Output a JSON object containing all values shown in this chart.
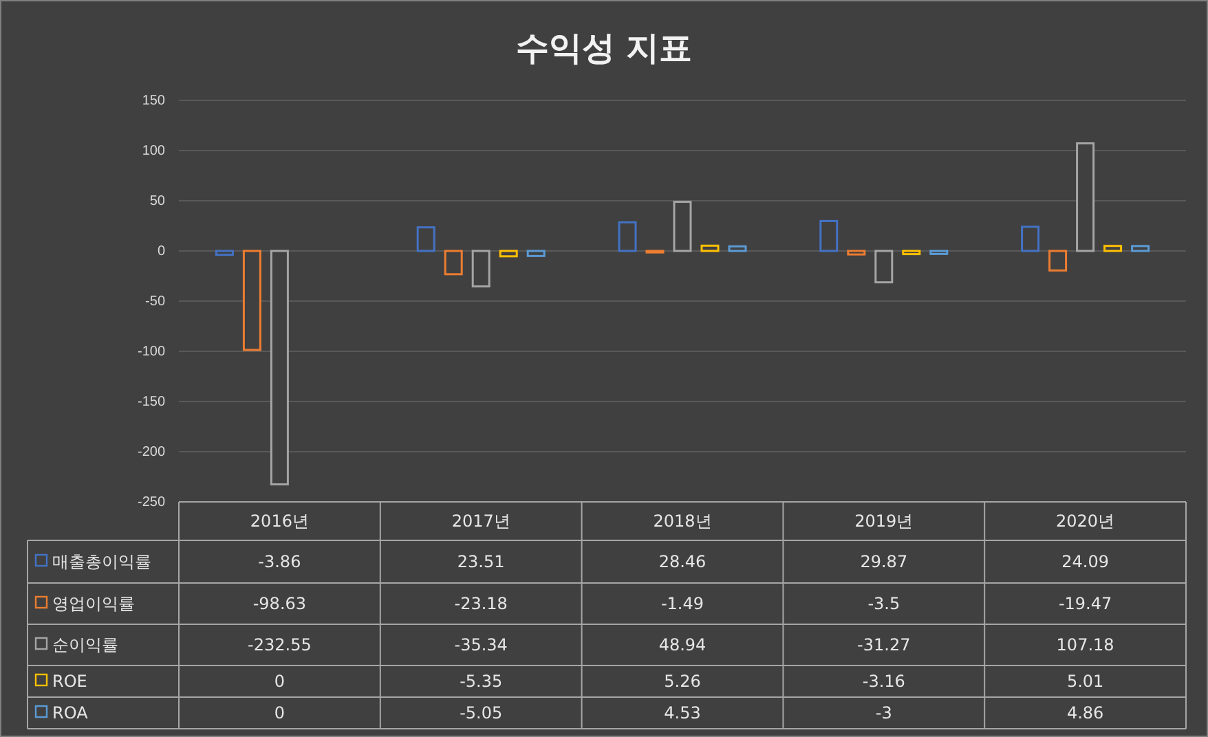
{
  "chart_data": {
    "type": "bar",
    "title": "수익성 지표",
    "categories": [
      "2016년",
      "2017년",
      "2018년",
      "2019년",
      "2020년"
    ],
    "series": [
      {
        "name": "매출총이익률",
        "color": "#4472c4",
        "values": [
          -3.86,
          23.51,
          28.46,
          29.87,
          24.09
        ]
      },
      {
        "name": "영업이익률",
        "color": "#ed7d31",
        "values": [
          -98.63,
          -23.18,
          -1.49,
          -3.5,
          -19.47
        ]
      },
      {
        "name": "순이익률",
        "color": "#a5a5a5",
        "values": [
          -232.55,
          -35.34,
          48.94,
          -31.27,
          107.18
        ]
      },
      {
        "name": "ROE",
        "color": "#ffc000",
        "values": [
          0,
          -5.35,
          5.26,
          -3.16,
          5.01
        ]
      },
      {
        "name": "ROA",
        "color": "#5b9bd5",
        "values": [
          0,
          -5.05,
          4.53,
          -3,
          4.86
        ]
      }
    ],
    "ylim": [
      -250,
      150
    ],
    "yticks": [
      150,
      100,
      50,
      0,
      -50,
      -100,
      -150,
      -200,
      -250
    ],
    "grid": "y",
    "legend": "bottom",
    "data_labels": true
  }
}
